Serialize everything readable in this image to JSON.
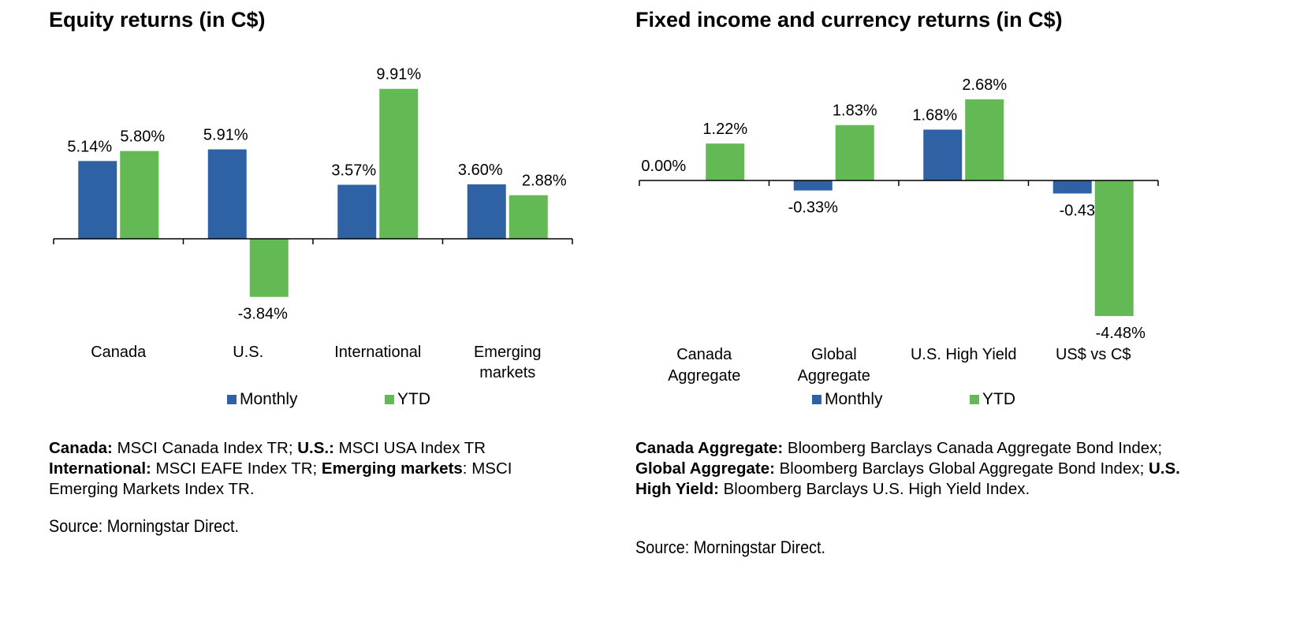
{
  "colors": {
    "monthly": "#2e62a5",
    "ytd": "#63b953",
    "axis": "#000000"
  },
  "chart_data": [
    {
      "type": "bar",
      "title": "Equity returns (in C$)",
      "categories": [
        "Canada",
        "U.S.",
        "International",
        "Emerging markets"
      ],
      "series": [
        {
          "name": "Monthly",
          "values": [
            5.14,
            5.91,
            3.57,
            3.6
          ],
          "labels": [
            "5.14%",
            "5.91%",
            "3.57%",
            "3.60%"
          ]
        },
        {
          "name": "YTD",
          "values": [
            5.8,
            -3.84,
            9.91,
            2.88
          ],
          "labels": [
            "5.80%",
            "-3.84%",
            "9.91%",
            "2.88%"
          ]
        }
      ],
      "legend": "bottom",
      "grid": false
    },
    {
      "type": "bar",
      "title": "Fixed income and currency returns (in C$)",
      "categories": [
        "Canada Aggregate",
        "Global Aggregate",
        "U.S. High Yield",
        "US$ vs C$"
      ],
      "series": [
        {
          "name": "Monthly",
          "values": [
            0.0,
            -0.33,
            1.68,
            -0.43
          ],
          "labels": [
            "0.00%",
            "-0.33%",
            "1.68%",
            "-0.43%"
          ]
        },
        {
          "name": "YTD",
          "values": [
            1.22,
            1.83,
            2.68,
            -4.48
          ],
          "labels": [
            "1.22%",
            "1.83%",
            "2.68%",
            "-4.48%"
          ]
        }
      ],
      "legend": "bottom",
      "grid": false
    }
  ],
  "footnotes": {
    "left": {
      "canada_term": "Canada:",
      "canada_text": " MSCI Canada Index TR; ",
      "us_term": "U.S.:",
      "us_text": " MSCI USA Index TR",
      "intl_term": "International:",
      "intl_text": " MSCI EAFE Index TR; ",
      "em_term": "Emerging markets",
      "em_text": ": MSCI Emerging Markets Index TR.",
      "source": "Source: Morningstar Direct."
    },
    "right": {
      "ca_term": "Canada Aggregate:",
      "ca_text": " Bloomberg Barclays Canada Aggregate Bond Index; ",
      "ga_term": "Global Aggregate:",
      "ga_text": " Bloomberg Barclays Global Aggregate Bond Index; ",
      "hy_term": "U.S. High Yield:",
      "hy_text": " Bloomberg Barclays U.S. High Yield Index.",
      "source": "Source: Morningstar Direct."
    }
  }
}
